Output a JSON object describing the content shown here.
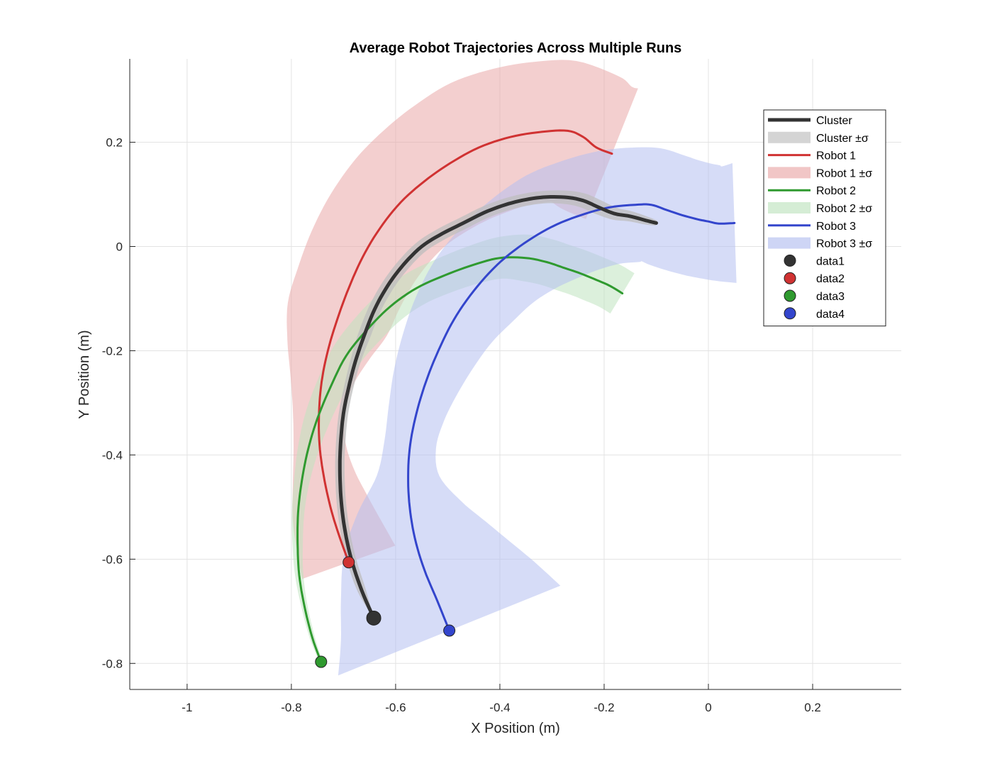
{
  "chart_data": {
    "type": "line",
    "title": "Average Robot Trajectories Across Multiple Runs",
    "xlabel": "X Position (m)",
    "ylabel": "Y Position (m)",
    "xlim": [
      -1.11,
      0.37
    ],
    "ylim": [
      -0.85,
      0.36
    ],
    "x_ticks": [
      -1,
      -0.8,
      -0.6,
      -0.4,
      -0.2,
      0,
      0.2
    ],
    "x_tick_labels": [
      "-1",
      "-0.8",
      "-0.6",
      "-0.4",
      "-0.2",
      "0",
      "0.2"
    ],
    "y_ticks": [
      -0.8,
      -0.6,
      -0.4,
      -0.2,
      0,
      0.2
    ],
    "y_tick_labels": [
      "-0.8",
      "-0.6",
      "-0.4",
      "-0.2",
      "0",
      "0.2"
    ],
    "grid": true,
    "legend_position": "top-right",
    "series": [
      {
        "name": "Cluster",
        "band_name": "Cluster ±σ",
        "color": "#333333",
        "band_color": "#bdbdbd",
        "points": [
          [
            -0.642,
            -0.713
          ],
          [
            -0.665,
            -0.66
          ],
          [
            -0.685,
            -0.6
          ],
          [
            -0.698,
            -0.54
          ],
          [
            -0.705,
            -0.48
          ],
          [
            -0.707,
            -0.42
          ],
          [
            -0.705,
            -0.37
          ],
          [
            -0.7,
            -0.32
          ],
          [
            -0.69,
            -0.27
          ],
          [
            -0.677,
            -0.22
          ],
          [
            -0.66,
            -0.17
          ],
          [
            -0.64,
            -0.12
          ],
          [
            -0.615,
            -0.075
          ],
          [
            -0.585,
            -0.035
          ],
          [
            -0.55,
            0.0
          ],
          [
            -0.51,
            0.025
          ],
          [
            -0.47,
            0.045
          ],
          [
            -0.43,
            0.065
          ],
          [
            -0.39,
            0.08
          ],
          [
            -0.35,
            0.09
          ],
          [
            -0.31,
            0.095
          ],
          [
            -0.27,
            0.094
          ],
          [
            -0.24,
            0.088
          ],
          [
            -0.21,
            0.075
          ],
          [
            -0.18,
            0.063
          ],
          [
            -0.15,
            0.058
          ],
          [
            -0.12,
            0.05
          ],
          [
            -0.1,
            0.045
          ]
        ],
        "band_width": [
          0.0,
          0.008,
          0.009,
          0.009,
          0.009,
          0.009,
          0.009,
          0.009,
          0.009,
          0.01,
          0.012,
          0.012,
          0.012,
          0.012,
          0.012,
          0.012,
          0.012,
          0.012,
          0.012,
          0.012,
          0.012,
          0.013,
          0.014,
          0.014,
          0.012,
          0.01,
          0.008,
          0.005
        ],
        "start_label": "data1"
      },
      {
        "name": "Robot 1",
        "band_name": "Robot 1 ±σ",
        "color": "#d03232",
        "band_color": "#eaa7a7",
        "points": [
          [
            -0.69,
            -0.606
          ],
          [
            -0.71,
            -0.55
          ],
          [
            -0.725,
            -0.5
          ],
          [
            -0.738,
            -0.44
          ],
          [
            -0.746,
            -0.38
          ],
          [
            -0.747,
            -0.32
          ],
          [
            -0.742,
            -0.26
          ],
          [
            -0.73,
            -0.2
          ],
          [
            -0.712,
            -0.14
          ],
          [
            -0.69,
            -0.08
          ],
          [
            -0.663,
            -0.02
          ],
          [
            -0.63,
            0.035
          ],
          [
            -0.59,
            0.085
          ],
          [
            -0.545,
            0.125
          ],
          [
            -0.495,
            0.16
          ],
          [
            -0.44,
            0.19
          ],
          [
            -0.38,
            0.21
          ],
          [
            -0.32,
            0.22
          ],
          [
            -0.27,
            0.222
          ],
          [
            -0.24,
            0.21
          ],
          [
            -0.215,
            0.19
          ],
          [
            -0.185,
            0.178
          ]
        ],
        "band_width": [
          0.095,
          0.085,
          0.075,
          0.06,
          0.05,
          0.05,
          0.06,
          0.08,
          0.1,
          0.105,
          0.11,
          0.115,
          0.12,
          0.125,
          0.13,
          0.135,
          0.135,
          0.135,
          0.135,
          0.135,
          0.135,
          0.135
        ],
        "start_label": "data2"
      },
      {
        "name": "Robot 2",
        "band_name": "Robot 2 ±σ",
        "color": "#2f9a2f",
        "band_color": "#bfe3bf",
        "points": [
          [
            -0.743,
            -0.797
          ],
          [
            -0.76,
            -0.75
          ],
          [
            -0.775,
            -0.69
          ],
          [
            -0.785,
            -0.63
          ],
          [
            -0.788,
            -0.57
          ],
          [
            -0.787,
            -0.51
          ],
          [
            -0.78,
            -0.45
          ],
          [
            -0.768,
            -0.39
          ],
          [
            -0.75,
            -0.33
          ],
          [
            -0.725,
            -0.27
          ],
          [
            -0.695,
            -0.21
          ],
          [
            -0.655,
            -0.16
          ],
          [
            -0.61,
            -0.115
          ],
          [
            -0.56,
            -0.08
          ],
          [
            -0.505,
            -0.055
          ],
          [
            -0.45,
            -0.035
          ],
          [
            -0.4,
            -0.022
          ],
          [
            -0.35,
            -0.022
          ],
          [
            -0.31,
            -0.03
          ],
          [
            -0.28,
            -0.04
          ],
          [
            -0.25,
            -0.05
          ],
          [
            -0.22,
            -0.062
          ],
          [
            -0.19,
            -0.075
          ],
          [
            -0.165,
            -0.09
          ]
        ],
        "band_width": [
          0.003,
          0.005,
          0.006,
          0.008,
          0.01,
          0.012,
          0.015,
          0.02,
          0.025,
          0.028,
          0.03,
          0.032,
          0.033,
          0.034,
          0.035,
          0.037,
          0.04,
          0.045,
          0.045,
          0.045,
          0.045,
          0.045,
          0.045,
          0.045
        ],
        "start_label": "data3"
      },
      {
        "name": "Robot 3",
        "band_name": "Robot 3 ±σ",
        "color": "#3345cc",
        "band_color": "#b4bff0",
        "points": [
          [
            -0.497,
            -0.737
          ],
          [
            -0.52,
            -0.68
          ],
          [
            -0.545,
            -0.62
          ],
          [
            -0.563,
            -0.56
          ],
          [
            -0.573,
            -0.5
          ],
          [
            -0.576,
            -0.44
          ],
          [
            -0.572,
            -0.38
          ],
          [
            -0.56,
            -0.32
          ],
          [
            -0.542,
            -0.26
          ],
          [
            -0.518,
            -0.2
          ],
          [
            -0.488,
            -0.14
          ],
          [
            -0.45,
            -0.085
          ],
          [
            -0.405,
            -0.035
          ],
          [
            -0.355,
            0.005
          ],
          [
            -0.3,
            0.038
          ],
          [
            -0.245,
            0.06
          ],
          [
            -0.19,
            0.075
          ],
          [
            -0.14,
            0.08
          ],
          [
            -0.11,
            0.08
          ],
          [
            -0.08,
            0.07
          ],
          [
            -0.05,
            0.06
          ],
          [
            -0.02,
            0.052
          ],
          [
            0.0,
            0.048
          ],
          [
            0.02,
            0.044
          ],
          [
            0.05,
            0.045
          ]
        ],
        "band_width": [
          0.23,
          0.2,
          0.17,
          0.14,
          0.1,
          0.06,
          0.05,
          0.055,
          0.065,
          0.075,
          0.085,
          0.095,
          0.1,
          0.105,
          0.11,
          0.11,
          0.11,
          0.11,
          0.11,
          0.11,
          0.11,
          0.11,
          0.11,
          0.11,
          0.115
        ],
        "start_label": "data4"
      }
    ]
  }
}
